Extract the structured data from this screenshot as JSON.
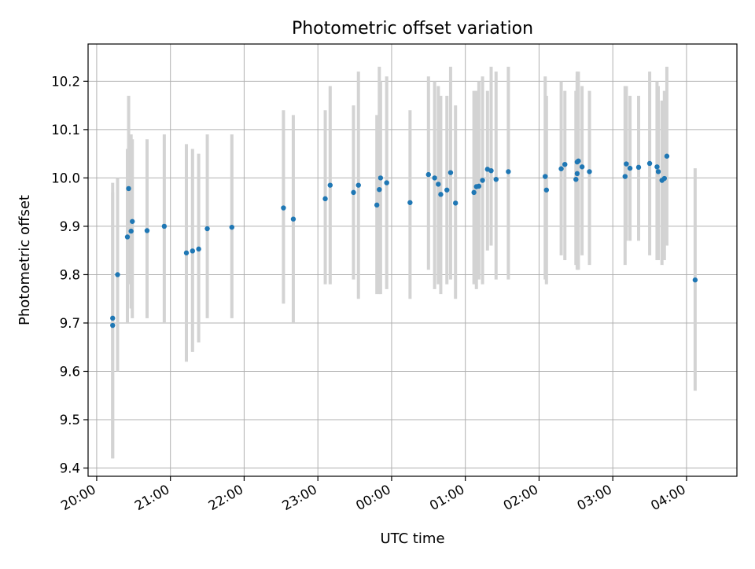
{
  "chart_data": {
    "type": "scatter",
    "title": "Photometric offset variation",
    "xlabel": "UTC time",
    "ylabel": "Photometric offset",
    "x_ticks": [
      "20:00",
      "21:00",
      "22:00",
      "23:00",
      "00:00",
      "01:00",
      "02:00",
      "03:00",
      "04:00"
    ],
    "y_ticks": [
      "9.4",
      "9.5",
      "9.6",
      "9.7",
      "9.8",
      "9.9",
      "10.0",
      "10.1",
      "10.2"
    ],
    "xlim": [
      "19:53",
      "04:41"
    ],
    "ylim": [
      9.383,
      10.277
    ],
    "grid": true,
    "errorbar_color": "#d3d3d3",
    "point_color": "#1f77b4",
    "series": [
      {
        "x": [
          "20:13",
          "20:13",
          "20:17",
          "20:25",
          "20:26",
          "20:28",
          "20:29",
          "20:41",
          "20:55",
          "21:13",
          "21:18",
          "21:23",
          "21:30",
          "21:50",
          "22:32",
          "22:40",
          "23:06",
          "23:10",
          "23:29",
          "23:33",
          "23:48",
          "23:50",
          "23:51",
          "23:56",
          "00:15",
          "00:30",
          "00:35",
          "00:38",
          "00:40",
          "00:45",
          "00:48",
          "00:52",
          "01:07",
          "01:09",
          "01:11",
          "01:14",
          "01:18",
          "01:21",
          "01:25",
          "01:35",
          "02:05",
          "02:06",
          "02:18",
          "02:21",
          "02:30",
          "02:31",
          "02:31",
          "02:32",
          "02:35",
          "02:41",
          "03:10",
          "03:11",
          "03:14",
          "03:21",
          "03:30",
          "03:36",
          "03:37",
          "03:40",
          "03:42",
          "03:44",
          "04:07"
        ],
        "y": [
          9.71,
          9.695,
          9.8,
          9.878,
          9.978,
          9.89,
          9.91,
          9.891,
          9.9,
          9.845,
          9.849,
          9.853,
          9.895,
          9.898,
          9.938,
          9.915,
          9.957,
          9.985,
          9.97,
          9.985,
          9.944,
          9.976,
          10.0,
          9.99,
          9.949,
          10.007,
          10.0,
          9.987,
          9.966,
          9.975,
          10.011,
          9.948,
          9.97,
          9.982,
          9.983,
          9.995,
          10.018,
          10.015,
          9.997,
          10.013,
          10.003,
          9.975,
          10.019,
          10.028,
          9.997,
          10.033,
          10.009,
          10.035,
          10.023,
          10.013,
          10.003,
          10.029,
          10.02,
          10.022,
          10.03,
          10.023,
          10.013,
          9.995,
          9.999,
          10.045,
          9.789
        ],
        "err_low": [
          9.42,
          9.42,
          9.6,
          9.7,
          9.78,
          9.73,
          9.71,
          9.71,
          9.7,
          9.62,
          9.64,
          9.66,
          9.71,
          9.71,
          9.74,
          9.7,
          9.78,
          9.78,
          9.79,
          9.75,
          9.76,
          9.76,
          9.76,
          9.77,
          9.75,
          9.81,
          9.77,
          9.78,
          9.76,
          9.78,
          9.79,
          9.75,
          9.78,
          9.77,
          9.79,
          9.78,
          9.85,
          9.86,
          9.79,
          9.79,
          9.79,
          9.78,
          9.84,
          9.83,
          9.82,
          9.84,
          9.81,
          9.81,
          9.84,
          9.82,
          9.82,
          9.87,
          9.87,
          9.87,
          9.84,
          9.83,
          9.83,
          9.82,
          9.83,
          9.86,
          9.56
        ],
        "err_high": [
          9.99,
          9.97,
          10.0,
          10.06,
          10.17,
          10.09,
          10.08,
          10.08,
          10.09,
          10.07,
          10.06,
          10.05,
          10.09,
          10.09,
          10.14,
          10.13,
          10.14,
          10.19,
          10.15,
          10.22,
          10.13,
          10.23,
          10.2,
          10.21,
          10.14,
          10.21,
          10.2,
          10.19,
          10.17,
          10.17,
          10.23,
          10.15,
          10.18,
          10.18,
          10.2,
          10.21,
          10.18,
          10.23,
          10.22,
          10.23,
          10.21,
          10.17,
          10.2,
          10.18,
          10.18,
          10.22,
          10.21,
          10.22,
          10.19,
          10.18,
          10.19,
          10.19,
          10.17,
          10.17,
          10.22,
          10.2,
          10.19,
          10.16,
          10.18,
          10.23,
          10.02
        ]
      }
    ]
  }
}
